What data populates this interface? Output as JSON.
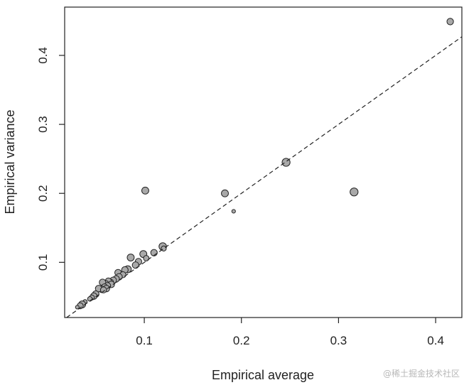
{
  "chart_data": {
    "type": "scatter",
    "title": "",
    "xlabel": "Empirical average",
    "ylabel": "Empirical variance",
    "xlim": [
      0.018,
      0.427
    ],
    "ylim": [
      0.02,
      0.47
    ],
    "x_ticks": [
      0.1,
      0.2,
      0.3,
      0.4
    ],
    "y_ticks": [
      0.1,
      0.2,
      0.3,
      0.4
    ],
    "x_tick_labels": [
      "0.1",
      "0.2",
      "0.3",
      "0.4"
    ],
    "y_tick_labels": [
      "0.1",
      "0.2",
      "0.3",
      "0.4"
    ],
    "grid": false,
    "reference_line": {
      "type": "identity",
      "slope": 1,
      "intercept": 0,
      "style": "dashed"
    },
    "point_color": "#a9a9a9",
    "edge_color": "#222222",
    "points": [
      {
        "x": 0.415,
        "y": 0.449,
        "size": 1.0
      },
      {
        "x": 0.246,
        "y": 0.245,
        "size": 1.3
      },
      {
        "x": 0.316,
        "y": 0.202,
        "size": 1.3
      },
      {
        "x": 0.183,
        "y": 0.2,
        "size": 1.1
      },
      {
        "x": 0.101,
        "y": 0.204,
        "size": 1.1
      },
      {
        "x": 0.192,
        "y": 0.174,
        "size": 0.4
      },
      {
        "x": 0.119,
        "y": 0.123,
        "size": 1.2
      },
      {
        "x": 0.12,
        "y": 0.12,
        "size": 0.7
      },
      {
        "x": 0.11,
        "y": 0.114,
        "size": 1.0
      },
      {
        "x": 0.099,
        "y": 0.112,
        "size": 1.1
      },
      {
        "x": 0.102,
        "y": 0.106,
        "size": 0.8
      },
      {
        "x": 0.086,
        "y": 0.107,
        "size": 1.1
      },
      {
        "x": 0.094,
        "y": 0.101,
        "size": 1.0
      },
      {
        "x": 0.091,
        "y": 0.096,
        "size": 1.0
      },
      {
        "x": 0.083,
        "y": 0.09,
        "size": 1.1
      },
      {
        "x": 0.08,
        "y": 0.089,
        "size": 1.0
      },
      {
        "x": 0.073,
        "y": 0.085,
        "size": 1.0
      },
      {
        "x": 0.078,
        "y": 0.082,
        "size": 0.9
      },
      {
        "x": 0.074,
        "y": 0.079,
        "size": 1.0
      },
      {
        "x": 0.071,
        "y": 0.076,
        "size": 1.0
      },
      {
        "x": 0.068,
        "y": 0.074,
        "size": 1.0
      },
      {
        "x": 0.065,
        "y": 0.071,
        "size": 1.0
      },
      {
        "x": 0.063,
        "y": 0.073,
        "size": 0.9
      },
      {
        "x": 0.06,
        "y": 0.069,
        "size": 1.0
      },
      {
        "x": 0.057,
        "y": 0.071,
        "size": 1.0
      },
      {
        "x": 0.066,
        "y": 0.068,
        "size": 1.0
      },
      {
        "x": 0.062,
        "y": 0.066,
        "size": 1.0
      },
      {
        "x": 0.059,
        "y": 0.064,
        "size": 1.0
      },
      {
        "x": 0.056,
        "y": 0.061,
        "size": 1.0
      },
      {
        "x": 0.061,
        "y": 0.062,
        "size": 1.0
      },
      {
        "x": 0.053,
        "y": 0.062,
        "size": 1.0
      },
      {
        "x": 0.058,
        "y": 0.06,
        "size": 0.9
      },
      {
        "x": 0.05,
        "y": 0.054,
        "size": 1.0
      },
      {
        "x": 0.048,
        "y": 0.051,
        "size": 1.0
      },
      {
        "x": 0.046,
        "y": 0.049,
        "size": 0.7
      },
      {
        "x": 0.044,
        "y": 0.047,
        "size": 0.6
      },
      {
        "x": 0.039,
        "y": 0.043,
        "size": 0.5
      },
      {
        "x": 0.036,
        "y": 0.039,
        "size": 1.1
      },
      {
        "x": 0.034,
        "y": 0.037,
        "size": 0.9
      },
      {
        "x": 0.031,
        "y": 0.035,
        "size": 0.4
      }
    ]
  },
  "watermark": "@稀土掘金技术社区"
}
